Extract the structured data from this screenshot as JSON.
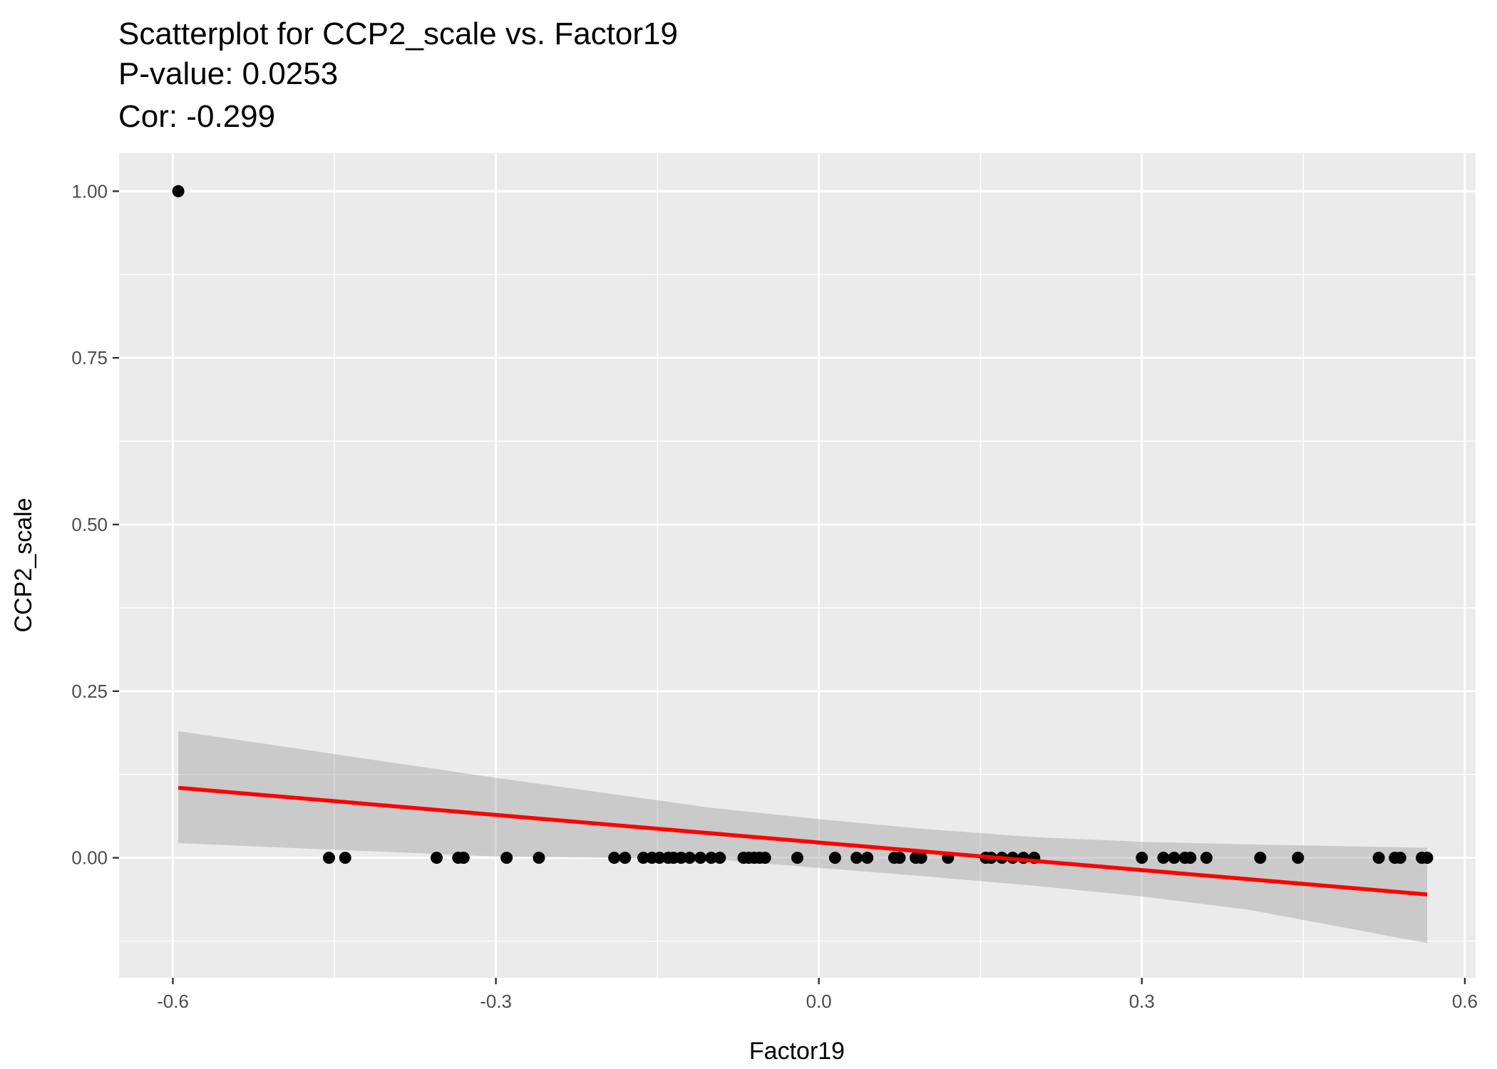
{
  "chart_data": {
    "type": "scatter",
    "title_lines": [
      "Scatterplot for CCP2_scale vs. Factor19",
      "P-value: 0.0253",
      "Cor: -0.299"
    ],
    "xlabel": "Factor19",
    "ylabel": "CCP2_scale",
    "xlim": [
      -0.65,
      0.61
    ],
    "ylim": [
      -0.18,
      1.057
    ],
    "x_ticks": [
      -0.6,
      -0.3,
      0.0,
      0.3,
      0.6
    ],
    "x_tick_labels": [
      "-0.6",
      "-0.3",
      "0.0",
      "0.3",
      "0.6"
    ],
    "y_ticks": [
      0.0,
      0.25,
      0.5,
      0.75,
      1.0
    ],
    "y_tick_labels": [
      "0.00",
      "0.25",
      "0.50",
      "0.75",
      "1.00"
    ],
    "grid": true,
    "colors": {
      "panel": "#ebebeb",
      "grid": "#ffffff",
      "points": "#000000",
      "fit_line": "#ff0000",
      "ci_band": "#999999"
    },
    "points": [
      {
        "x": -0.595,
        "y": 1.0
      },
      {
        "x": -0.455,
        "y": 0.0
      },
      {
        "x": -0.44,
        "y": 0.0
      },
      {
        "x": -0.355,
        "y": 0.0
      },
      {
        "x": -0.335,
        "y": 0.0
      },
      {
        "x": -0.33,
        "y": 0.0
      },
      {
        "x": -0.29,
        "y": 0.0
      },
      {
        "x": -0.26,
        "y": 0.0
      },
      {
        "x": -0.19,
        "y": 0.0
      },
      {
        "x": -0.18,
        "y": 0.0
      },
      {
        "x": -0.163,
        "y": 0.0
      },
      {
        "x": -0.155,
        "y": 0.0
      },
      {
        "x": -0.148,
        "y": 0.0
      },
      {
        "x": -0.14,
        "y": 0.0
      },
      {
        "x": -0.135,
        "y": 0.0
      },
      {
        "x": -0.128,
        "y": 0.0
      },
      {
        "x": -0.12,
        "y": 0.0
      },
      {
        "x": -0.11,
        "y": 0.0
      },
      {
        "x": -0.1,
        "y": 0.0
      },
      {
        "x": -0.092,
        "y": 0.0
      },
      {
        "x": -0.07,
        "y": 0.0
      },
      {
        "x": -0.065,
        "y": 0.0
      },
      {
        "x": -0.06,
        "y": 0.0
      },
      {
        "x": -0.055,
        "y": 0.0
      },
      {
        "x": -0.05,
        "y": 0.0
      },
      {
        "x": -0.02,
        "y": 0.0
      },
      {
        "x": 0.015,
        "y": 0.0
      },
      {
        "x": 0.035,
        "y": 0.0
      },
      {
        "x": 0.045,
        "y": 0.0
      },
      {
        "x": 0.07,
        "y": 0.0
      },
      {
        "x": 0.075,
        "y": 0.0
      },
      {
        "x": 0.09,
        "y": 0.0
      },
      {
        "x": 0.095,
        "y": 0.0
      },
      {
        "x": 0.12,
        "y": 0.0
      },
      {
        "x": 0.155,
        "y": 0.0
      },
      {
        "x": 0.16,
        "y": 0.0
      },
      {
        "x": 0.17,
        "y": 0.0
      },
      {
        "x": 0.18,
        "y": 0.0
      },
      {
        "x": 0.19,
        "y": 0.0
      },
      {
        "x": 0.2,
        "y": 0.0
      },
      {
        "x": 0.3,
        "y": 0.0
      },
      {
        "x": 0.32,
        "y": 0.0
      },
      {
        "x": 0.33,
        "y": 0.0
      },
      {
        "x": 0.34,
        "y": 0.0
      },
      {
        "x": 0.345,
        "y": 0.0
      },
      {
        "x": 0.36,
        "y": 0.0
      },
      {
        "x": 0.41,
        "y": 0.0
      },
      {
        "x": 0.445,
        "y": 0.0
      },
      {
        "x": 0.52,
        "y": 0.0
      },
      {
        "x": 0.535,
        "y": 0.0
      },
      {
        "x": 0.54,
        "y": 0.0
      },
      {
        "x": 0.56,
        "y": 0.0
      },
      {
        "x": 0.565,
        "y": 0.0
      }
    ],
    "fit": {
      "x": [
        -0.595,
        0.565
      ],
      "y": [
        0.105,
        -0.055
      ]
    },
    "ci_band": {
      "x": [
        -0.595,
        -0.3,
        -0.1,
        0.0,
        0.1,
        0.2,
        0.3,
        0.4,
        0.565
      ],
      "upper": [
        0.19,
        0.12,
        0.075,
        0.058,
        0.043,
        0.031,
        0.024,
        0.02,
        0.015
      ],
      "lower": [
        0.022,
        0.002,
        -0.002,
        -0.015,
        -0.028,
        -0.042,
        -0.058,
        -0.078,
        -0.128
      ]
    }
  }
}
